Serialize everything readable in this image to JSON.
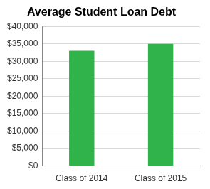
{
  "chart_data": {
    "type": "bar",
    "title": "Average Student Loan Debt",
    "categories": [
      "Class of 2014",
      "Class of 2015"
    ],
    "values": [
      33000,
      35000
    ],
    "color": "#2fb34a",
    "ylim": [
      0,
      40000
    ],
    "yticks": [
      {
        "value": 0,
        "label": "$0"
      },
      {
        "value": 5000,
        "label": "$5,000"
      },
      {
        "value": 10000,
        "label": "$10,000"
      },
      {
        "value": 15000,
        "label": "$15,000"
      },
      {
        "value": 20000,
        "label": "$20,000"
      },
      {
        "value": 25000,
        "label": "$25,000"
      },
      {
        "value": 30000,
        "label": "$30,000"
      },
      {
        "value": 35000,
        "label": "$35,000"
      },
      {
        "value": 40000,
        "label": "$40,000"
      }
    ],
    "grid": true
  }
}
